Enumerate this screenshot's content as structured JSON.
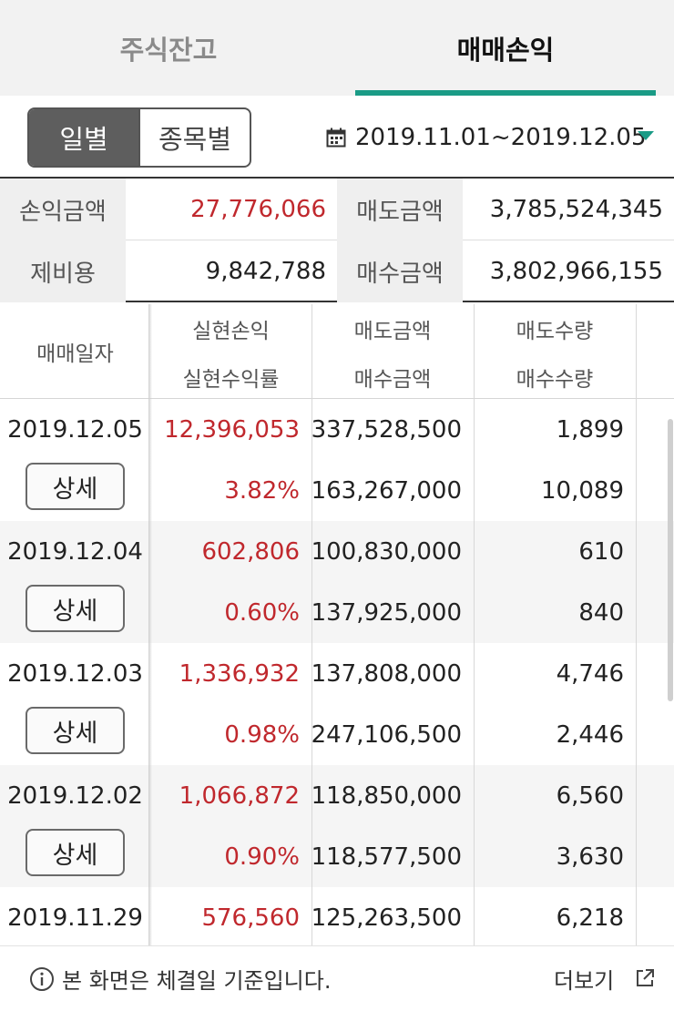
{
  "tabs": [
    {
      "label": "주식잔고",
      "active": false
    },
    {
      "label": "매매손익",
      "active": true
    }
  ],
  "view_toggle": {
    "daily": "일별",
    "by_stock": "종목별",
    "selected": "일별"
  },
  "date_range": "2019.11.01~2019.12.05",
  "summary": {
    "profit_label": "손익금액",
    "profit_value": "27,776,066",
    "sell_label": "매도금액",
    "sell_value": "3,785,524,345",
    "fees_label": "제비용",
    "fees_value": "9,842,788",
    "buy_label": "매수금액",
    "buy_value": "3,802,966,155"
  },
  "table": {
    "headers": {
      "date": "매매일자",
      "realized_pl": "실현손익",
      "realized_rate": "실현수익률",
      "sell_amount": "매도금액",
      "buy_amount": "매수금액",
      "sell_qty": "매도수량",
      "buy_qty": "매수수량"
    },
    "detail_label": "상세",
    "rows": [
      {
        "date": "2019.12.05",
        "pl": "12,396,053",
        "rate": "3.82%",
        "sell_amt": "337,528,500",
        "buy_amt": "163,267,000",
        "sell_qty": "1,899",
        "buy_qty": "10,089"
      },
      {
        "date": "2019.12.04",
        "pl": "602,806",
        "rate": "0.60%",
        "sell_amt": "100,830,000",
        "buy_amt": "137,925,000",
        "sell_qty": "610",
        "buy_qty": "840"
      },
      {
        "date": "2019.12.03",
        "pl": "1,336,932",
        "rate": "0.98%",
        "sell_amt": "137,808,000",
        "buy_amt": "247,106,500",
        "sell_qty": "4,746",
        "buy_qty": "2,446"
      },
      {
        "date": "2019.12.02",
        "pl": "1,066,872",
        "rate": "0.90%",
        "sell_amt": "118,850,000",
        "buy_amt": "118,577,500",
        "sell_qty": "6,560",
        "buy_qty": "3,630"
      },
      {
        "date": "2019.11.29",
        "pl": "576,560",
        "rate": "",
        "sell_amt": "125,263,500",
        "buy_amt": "",
        "sell_qty": "6,218",
        "buy_qty": ""
      }
    ]
  },
  "footer": {
    "notice": "본 화면은 체결일 기준입니다.",
    "more": "더보기"
  },
  "colors": {
    "accent": "#1a9b86",
    "profit_red": "#c0282d",
    "toggle_active": "#5e5e5e"
  }
}
